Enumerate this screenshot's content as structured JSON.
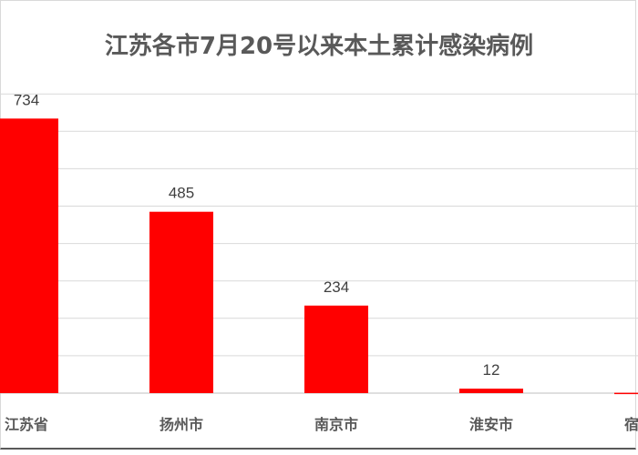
{
  "chart_data": {
    "type": "bar",
    "title": "江苏各市7月20号以来本土累计感染病例",
    "xlabel": "",
    "ylabel": "",
    "categories": [
      "江苏省",
      "扬州市",
      "南京市",
      "淮安市",
      "宿迁市"
    ],
    "values": [
      734,
      485,
      234,
      12,
      1
    ],
    "ylim": [
      0,
      800
    ],
    "grid": true,
    "legend": "none",
    "colors": {
      "bar": "#ff0000",
      "grid": "#d9d9d9",
      "text": "#595959",
      "label": "#404040"
    }
  }
}
